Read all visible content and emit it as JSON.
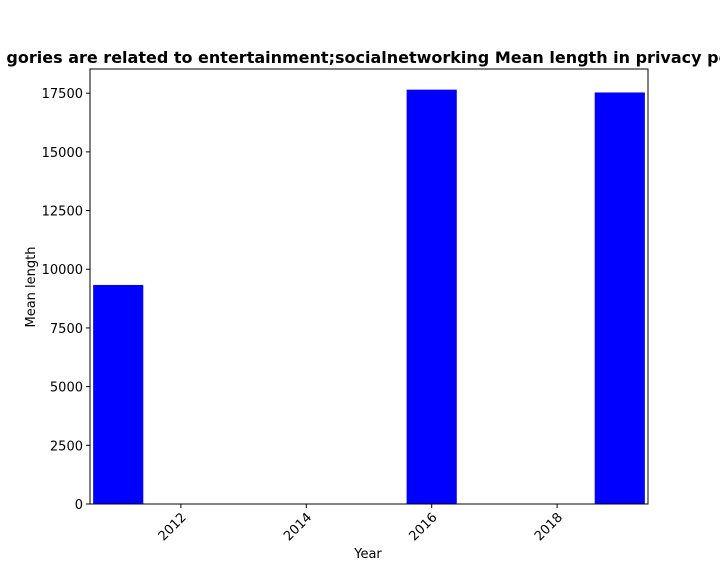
{
  "chart_data": {
    "type": "bar",
    "title": "gories are related to entertainment;socialnetworking Mean length in privacy po",
    "xlabel": "Year",
    "ylabel": "Mean length",
    "x": [
      2011,
      2016,
      2019
    ],
    "values": [
      9330,
      17650,
      17530
    ],
    "bar_width_years": 0.8,
    "xlim": [
      2010.55,
      2019.45
    ],
    "ylim": [
      0,
      18530
    ],
    "x_ticks": [
      2012,
      2014,
      2016,
      2018
    ],
    "x_tick_labels": [
      "2012",
      "2014",
      "2016",
      "2018"
    ],
    "y_ticks": [
      0,
      2500,
      5000,
      7500,
      10000,
      12500,
      15000,
      17500
    ],
    "y_tick_labels": [
      "0",
      "2500",
      "5000",
      "7500",
      "10000",
      "12500",
      "15000",
      "17500"
    ],
    "bar_color": "#0000ff",
    "grid": false,
    "legend": "none",
    "x_tick_rotation": "45deg"
  }
}
